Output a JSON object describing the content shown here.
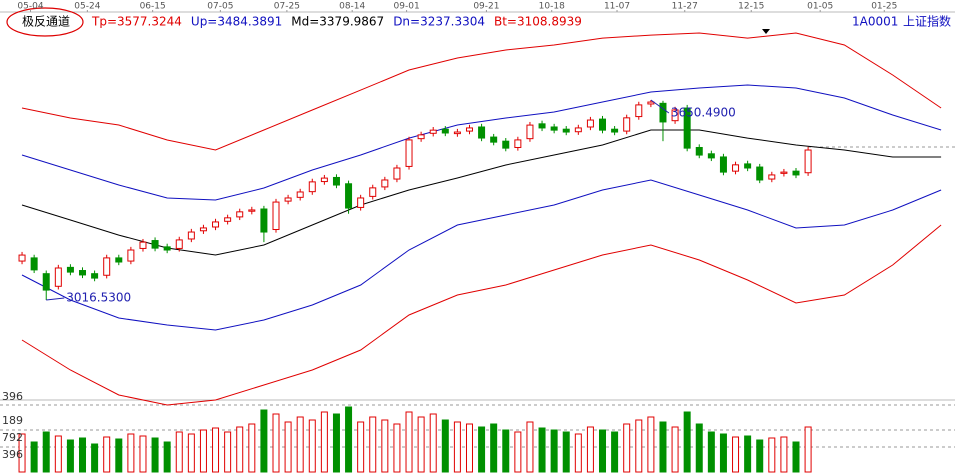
{
  "chart_data": {
    "type": "candlestick",
    "indicator_title": "极反通道",
    "symbol": "1A0001",
    "symbol_name": "上证指数",
    "xlim": [
      -0.5,
      76.9
    ],
    "xticks": [
      {
        "value": 0.7,
        "label": "05-04"
      },
      {
        "value": 5.4,
        "label": "05-24"
      },
      {
        "value": 10.8,
        "label": "06-15"
      },
      {
        "value": 16.4,
        "label": "07-05"
      },
      {
        "value": 21.9,
        "label": "07-25"
      },
      {
        "value": 27.3,
        "label": "08-14"
      },
      {
        "value": 31.8,
        "label": "09-01"
      },
      {
        "value": 38.4,
        "label": "09-21"
      },
      {
        "value": 43.8,
        "label": "10-18"
      },
      {
        "value": 49.2,
        "label": "11-07"
      },
      {
        "value": 54.8,
        "label": "11-27"
      },
      {
        "value": 60.3,
        "label": "12-15"
      },
      {
        "value": 66.0,
        "label": "01-05"
      },
      {
        "value": 71.3,
        "label": "01-25"
      }
    ],
    "ylim": [
      2683.7,
      3951.7
    ],
    "y2lim": [
      2923.4,
      3630.2
    ],
    "candles": {
      "up_color": "#e00000",
      "down_color": "#009000",
      "x": [
        0,
        1,
        2,
        3,
        4,
        5,
        6,
        7,
        8,
        9,
        10,
        11,
        12,
        13,
        14,
        15,
        16,
        17,
        18,
        19,
        20,
        21,
        22,
        23,
        24,
        25,
        26,
        27,
        28,
        29,
        30,
        31,
        32,
        33,
        34,
        35,
        36,
        37,
        38,
        39,
        40,
        41,
        42,
        43,
        44,
        45,
        46,
        47,
        48,
        49,
        50,
        51,
        52,
        53,
        54,
        55,
        56,
        57,
        58,
        59,
        60,
        61,
        62,
        63,
        64,
        65
      ],
      "open": [
        3140,
        3150,
        3100,
        3060,
        3120,
        3110,
        3100,
        3095,
        3150,
        3140,
        3180,
        3205,
        3185,
        3180,
        3210,
        3236,
        3248,
        3266,
        3280,
        3298,
        3305,
        3240,
        3330,
        3342,
        3360,
        3392,
        3405,
        3385,
        3310,
        3345,
        3375,
        3400,
        3440,
        3528,
        3545,
        3558,
        3544,
        3552,
        3565,
        3533,
        3520,
        3500,
        3528,
        3575,
        3565,
        3558,
        3550,
        3565,
        3590,
        3558,
        3552,
        3598,
        3638,
        3640,
        3585,
        3625,
        3500,
        3480,
        3470,
        3425,
        3448,
        3438,
        3400,
        3418,
        3425,
        3420
      ],
      "high": [
        3169,
        3160,
        3110,
        3128,
        3130,
        3120,
        3110,
        3160,
        3160,
        3185,
        3210,
        3215,
        3195,
        3217,
        3242,
        3255,
        3274,
        3287,
        3306,
        3312,
        3315,
        3337,
        3350,
        3369,
        3401,
        3413,
        3415,
        3395,
        3350,
        3382,
        3407,
        3445,
        3534,
        3550,
        3565,
        3568,
        3559,
        3572,
        3575,
        3543,
        3530,
        3534,
        3581,
        3585,
        3575,
        3568,
        3572,
        3597,
        3600,
        3568,
        3604,
        3645,
        3650.49,
        3648,
        3629,
        3635,
        3510,
        3490,
        3480,
        3455,
        3458,
        3448,
        3423,
        3432,
        3435,
        3502
      ],
      "low": [
        3130,
        3102,
        3016.53,
        3050,
        3095,
        3086,
        3076,
        3085,
        3127,
        3130,
        3170,
        3171,
        3165,
        3170,
        3200,
        3226,
        3238,
        3256,
        3270,
        3288,
        3200,
        3230,
        3320,
        3332,
        3350,
        3382,
        3371,
        3290,
        3300,
        3335,
        3365,
        3390,
        3430,
        3518,
        3535,
        3536,
        3534,
        3542,
        3520,
        3507,
        3488,
        3490,
        3518,
        3552,
        3545,
        3539,
        3540,
        3555,
        3545,
        3539,
        3542,
        3588,
        3628,
        3520,
        3575,
        3488,
        3466,
        3457,
        3412,
        3415,
        3425,
        3387,
        3390,
        3408,
        3403,
        3410
      ],
      "close": [
        3159,
        3112,
        3048,
        3118,
        3105,
        3096,
        3086,
        3150,
        3137,
        3175,
        3200,
        3181,
        3175,
        3207,
        3232,
        3245,
        3264,
        3277,
        3296,
        3302,
        3232,
        3327,
        3340,
        3359,
        3391,
        3403,
        3381,
        3308,
        3340,
        3372,
        3397,
        3435,
        3524,
        3540,
        3555,
        3546,
        3549,
        3562,
        3530,
        3517,
        3498,
        3524,
        3571,
        3562,
        3555,
        3549,
        3562,
        3587,
        3555,
        3549,
        3594,
        3635,
        3644,
        3581,
        3619,
        3498,
        3476,
        3467,
        3422,
        3445,
        3435,
        3397,
        3413,
        3422,
        3413,
        3492
      ],
      "volume": [
        38,
        30,
        40,
        36,
        32,
        34,
        28,
        35,
        33,
        38,
        36,
        34,
        30,
        40,
        38,
        42,
        44,
        40,
        45,
        48,
        62,
        58,
        50,
        55,
        52,
        60,
        58,
        65,
        50,
        55,
        52,
        48,
        60,
        55,
        58,
        52,
        50,
        48,
        45,
        48,
        42,
        40,
        50,
        44,
        42,
        40,
        38,
        45,
        42,
        40,
        48,
        52,
        55,
        50,
        45,
        60,
        48,
        40,
        38,
        35,
        36,
        32,
        34,
        35,
        30,
        45
      ]
    },
    "annotations": [
      {
        "value": 3016.53,
        "label": "3016.5300",
        "color": "#2020b0"
      },
      {
        "value": 3650.49,
        "label": "3650.4900",
        "color": "#2020b0"
      }
    ],
    "x": [
      0,
      4,
      8,
      12,
      16,
      20,
      24,
      28,
      32,
      36,
      40,
      44,
      48,
      52,
      56,
      60,
      64,
      68,
      72,
      76
    ],
    "series": [
      {
        "name": "Tp=3577.3244",
        "color": "#e00000",
        "axis": "y2",
        "values": [
          3448.2,
          3430.5,
          3418.1,
          3391.6,
          3373.9,
          3409.3,
          3444.6,
          3479.9,
          3515.3,
          3536.5,
          3550.6,
          3559.5,
          3571.8,
          3577.1,
          3580.7,
          3571.8,
          3580.7,
          3559.5,
          3506.5,
          3448.2
        ]
      },
      {
        "name": "Up=3484.3891",
        "color": "#1010c0",
        "axis": "y2",
        "values": [
          3365.1,
          3338.6,
          3312.1,
          3289.1,
          3285.6,
          3306.8,
          3338.6,
          3365.1,
          3395.1,
          3418.1,
          3430.5,
          3441.1,
          3458.8,
          3476.4,
          3483.5,
          3488.8,
          3483.5,
          3465.8,
          3435.8,
          3409.3
        ]
      },
      {
        "name": "Md=3379.9867",
        "color": "#000000",
        "axis": "y2",
        "values": [
          3276.8,
          3250.3,
          3223.7,
          3200.8,
          3188.4,
          3206.1,
          3241.4,
          3276.8,
          3303.3,
          3324.5,
          3347.4,
          3365.1,
          3382.8,
          3409.3,
          3409.3,
          3395.1,
          3382.8,
          3373.9,
          3361.6,
          3361.6
        ]
      },
      {
        "name": "Dn=3237.3304",
        "color": "#1010c0",
        "axis": "y2",
        "values": [
          3153.1,
          3108.9,
          3077.1,
          3064.7,
          3055.9,
          3073.6,
          3100.1,
          3135.4,
          3197.2,
          3241.4,
          3259.1,
          3276.8,
          3303.3,
          3320.9,
          3294.4,
          3267.9,
          3236.1,
          3241.4,
          3267.9,
          3303.3
        ]
      },
      {
        "name": "Bt=3108.8939",
        "color": "#e00000",
        "axis": "y2",
        "values": [
          3038.2,
          2985.2,
          2941.0,
          2923.4,
          2932.2,
          2958.7,
          2985.2,
          3020.5,
          3082.4,
          3117.7,
          3135.4,
          3161.9,
          3188.4,
          3206.1,
          3179.6,
          3144.2,
          3103.6,
          3117.7,
          3170.7,
          3241.4
        ]
      }
    ],
    "volume_lim": [
      0,
      70
    ],
    "volume_labels": [
      "396",
      "189",
      "792",
      "396"
    ]
  }
}
